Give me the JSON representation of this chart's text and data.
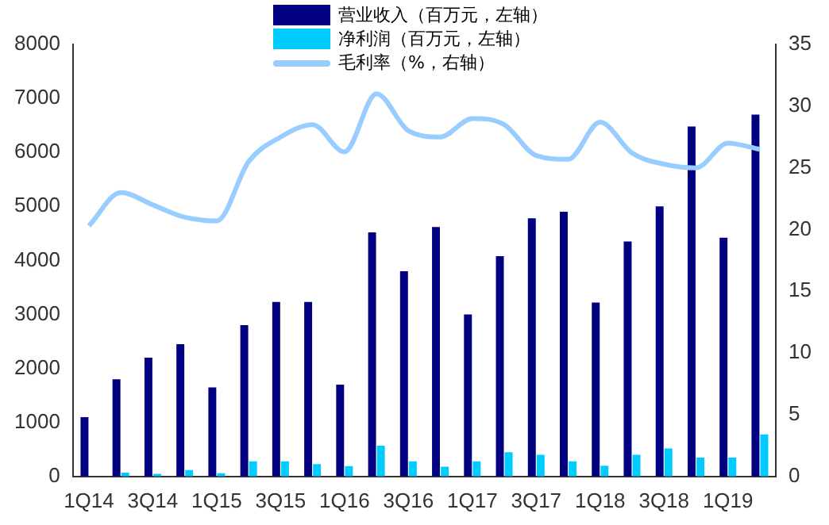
{
  "chart_data": {
    "type": "bar",
    "categories": [
      "1Q14",
      null,
      "3Q14",
      null,
      "1Q15",
      null,
      "3Q15",
      null,
      "1Q16",
      null,
      "3Q16",
      null,
      "1Q17",
      null,
      "3Q17",
      null,
      "1Q18",
      null,
      "3Q18",
      null,
      "1Q19",
      null
    ],
    "series": [
      {
        "name": "营业收入（百万元，左轴）",
        "color": "#000080",
        "values": [
          1100,
          1800,
          2200,
          2450,
          1650,
          2800,
          3230,
          3230,
          1700,
          4520,
          3800,
          4620,
          3000,
          4080,
          4780,
          4900,
          3220,
          4350,
          5000,
          6480,
          4420,
          6700
        ]
      },
      {
        "name": "净利润（百万元，左轴）",
        "color": "#00ccff",
        "values": [
          null,
          70,
          50,
          120,
          60,
          280,
          280,
          230,
          190,
          570,
          280,
          180,
          280,
          450,
          400,
          280,
          200,
          400,
          520,
          350,
          350,
          780
        ]
      },
      {
        "name": "毛利率（%，右轴）",
        "type": "line",
        "axis": "y2",
        "color": "#99ccff",
        "values": [
          20.3,
          23,
          22,
          21,
          20.7,
          25.5,
          27.5,
          28.5,
          26.3,
          31,
          28,
          27.5,
          29,
          28.5,
          26,
          25.7,
          28.7,
          26.2,
          25.3,
          25,
          27,
          26.5
        ]
      }
    ],
    "ylim": [
      0,
      8000
    ],
    "yticks": [
      0,
      1000,
      2000,
      3000,
      4000,
      5000,
      6000,
      7000,
      8000
    ],
    "y2lim": [
      0,
      35
    ],
    "y2ticks": [
      0,
      5,
      10,
      15,
      20,
      25,
      30,
      35
    ],
    "grid": false,
    "legend": "top",
    "marker": "none"
  }
}
